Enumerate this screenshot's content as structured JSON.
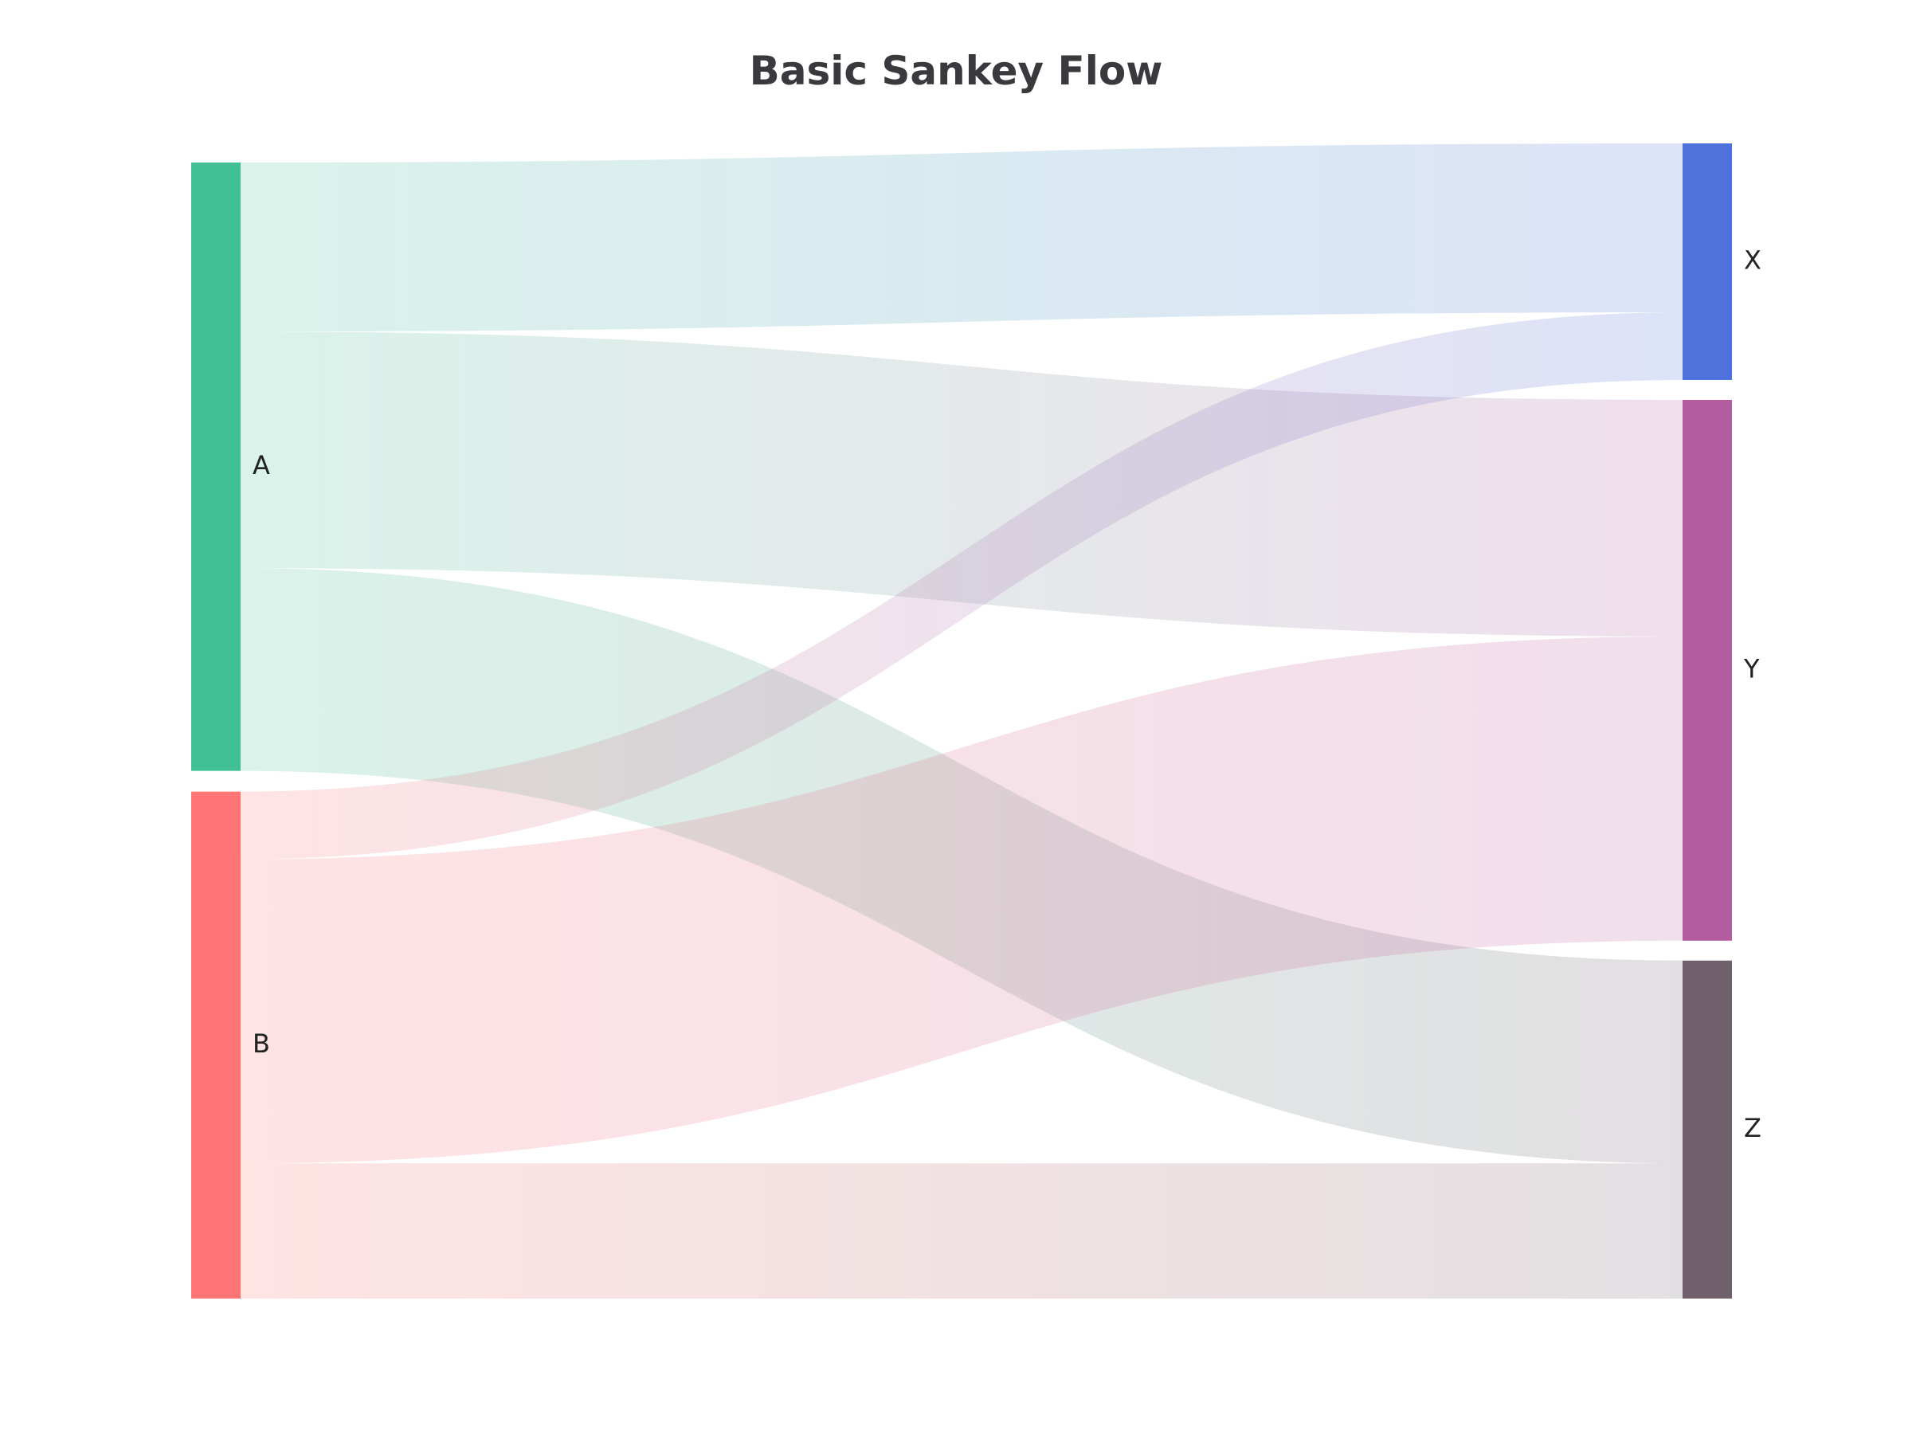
{
  "chart_data": {
    "type": "sankey",
    "title": "Basic Sankey Flow",
    "nodes": [
      {
        "id": "A",
        "label": "A",
        "color": "#42c095",
        "column": 0
      },
      {
        "id": "B",
        "label": "B",
        "color": "#ff7575",
        "column": 0
      },
      {
        "id": "X",
        "label": "X",
        "color": "#4f71dc",
        "column": 1
      },
      {
        "id": "Y",
        "label": "Y",
        "color": "#b35d9f",
        "column": 1
      },
      {
        "id": "Z",
        "label": "Z",
        "color": "#70606b",
        "column": 1
      }
    ],
    "links": [
      {
        "source": "A",
        "target": "X",
        "value": 5
      },
      {
        "source": "A",
        "target": "Y",
        "value": 7
      },
      {
        "source": "A",
        "target": "Z",
        "value": 6
      },
      {
        "source": "B",
        "target": "X",
        "value": 2
      },
      {
        "source": "B",
        "target": "Y",
        "value": 9
      },
      {
        "source": "B",
        "target": "Z",
        "value": 4
      }
    ],
    "link_opacity": 0.2
  }
}
